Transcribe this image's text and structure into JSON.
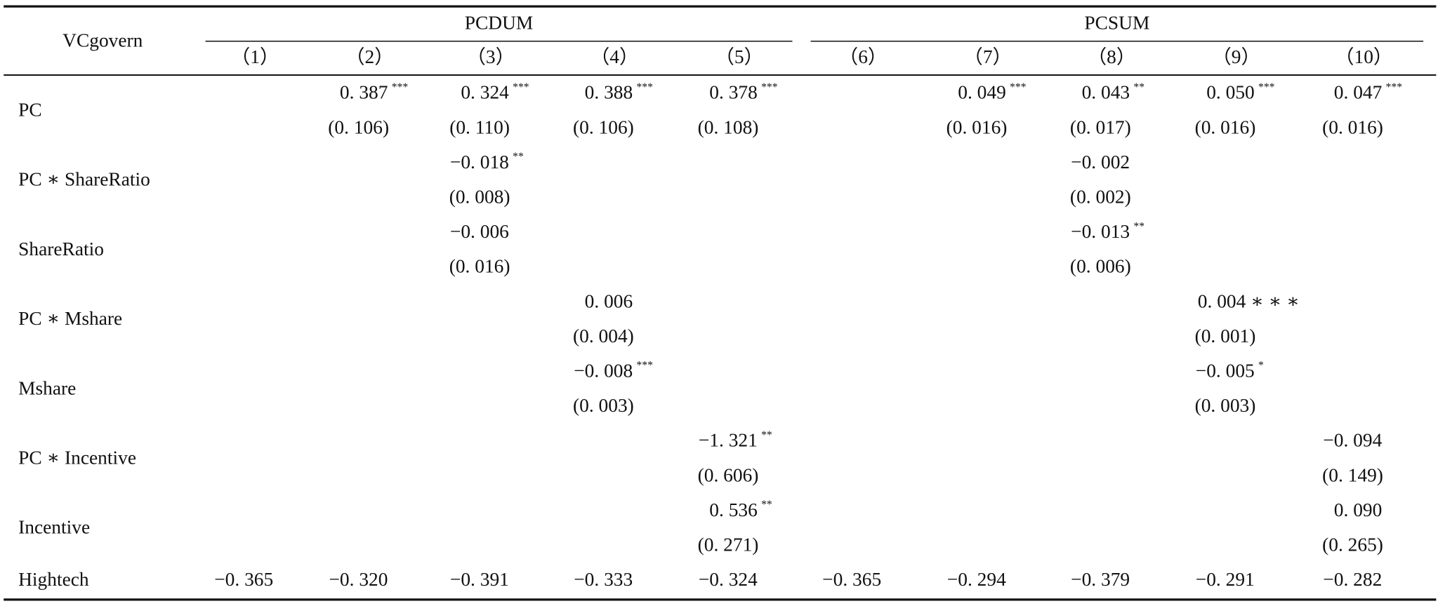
{
  "header": {
    "corner": "VCgovern",
    "groups": [
      "PCDUM",
      "PCSUM"
    ],
    "columns": [
      "（1）",
      "（2）",
      "（3）",
      "（4）",
      "（5）",
      "（6）",
      "（7）",
      "（8）",
      "（9）",
      "（10）"
    ]
  },
  "table": {
    "rows": [
      {
        "label": "PC",
        "coef": [
          null,
          "0. 387",
          "0. 324",
          "0. 388",
          "0. 378",
          null,
          "0. 049",
          "0. 043",
          "0. 050",
          "0. 047"
        ],
        "stars": [
          null,
          "***",
          "***",
          "***",
          "***",
          null,
          "***",
          "**",
          "***",
          "***"
        ],
        "se": [
          null,
          "(0. 106)",
          "(0. 110)",
          "(0. 106)",
          "(0. 108)",
          null,
          "(0. 016)",
          "(0. 017)",
          "(0. 016)",
          "(0. 016)"
        ]
      },
      {
        "label": "PC ∗ ShareRatio",
        "coef": [
          null,
          null,
          "−0. 018",
          null,
          null,
          null,
          null,
          "−0. 002",
          null,
          null
        ],
        "stars": [
          null,
          null,
          "**",
          null,
          null,
          null,
          null,
          null,
          null,
          null
        ],
        "se": [
          null,
          null,
          "(0. 008)",
          null,
          null,
          null,
          null,
          "(0. 002)",
          null,
          null
        ]
      },
      {
        "label": "ShareRatio",
        "coef": [
          null,
          null,
          "−0. 006",
          null,
          null,
          null,
          null,
          "−0. 013",
          null,
          null
        ],
        "stars": [
          null,
          null,
          null,
          null,
          null,
          null,
          null,
          "**",
          null,
          null
        ],
        "se": [
          null,
          null,
          "(0. 016)",
          null,
          null,
          null,
          null,
          "(0. 006)",
          null,
          null
        ]
      },
      {
        "label": "PC ∗ Mshare",
        "coef": [
          null,
          null,
          null,
          "0. 006",
          null,
          null,
          null,
          null,
          "0. 004 ∗ ∗ ∗",
          null
        ],
        "stars": [
          null,
          null,
          null,
          null,
          null,
          null,
          null,
          null,
          null,
          null
        ],
        "se": [
          null,
          null,
          null,
          "(0. 004)",
          null,
          null,
          null,
          null,
          "(0. 001)",
          null
        ]
      },
      {
        "label": "Mshare",
        "coef": [
          null,
          null,
          null,
          "−0. 008",
          null,
          null,
          null,
          null,
          "−0. 005",
          null
        ],
        "stars": [
          null,
          null,
          null,
          "***",
          null,
          null,
          null,
          null,
          "*",
          null
        ],
        "se": [
          null,
          null,
          null,
          "(0. 003)",
          null,
          null,
          null,
          null,
          "(0. 003)",
          null
        ]
      },
      {
        "label": "PC ∗ Incentive",
        "coef": [
          null,
          null,
          null,
          null,
          "−1. 321",
          null,
          null,
          null,
          null,
          "−0. 094"
        ],
        "stars": [
          null,
          null,
          null,
          null,
          "**",
          null,
          null,
          null,
          null,
          null
        ],
        "se": [
          null,
          null,
          null,
          null,
          "(0. 606)",
          null,
          null,
          null,
          null,
          "(0. 149)"
        ]
      },
      {
        "label": "Incentive",
        "coef": [
          null,
          null,
          null,
          null,
          "0. 536",
          null,
          null,
          null,
          null,
          "0. 090"
        ],
        "stars": [
          null,
          null,
          null,
          null,
          "**",
          null,
          null,
          null,
          null,
          null
        ],
        "se": [
          null,
          null,
          null,
          null,
          "(0. 271)",
          null,
          null,
          null,
          null,
          "(0. 265)"
        ]
      },
      {
        "label": "Hightech",
        "coef": [
          "−0. 365",
          "−0. 320",
          "−0. 391",
          "−0. 333",
          "−0. 324",
          "−0. 365",
          "−0. 294",
          "−0. 379",
          "−0. 291",
          "−0. 282"
        ],
        "stars": [
          null,
          null,
          null,
          null,
          null,
          null,
          null,
          null,
          null,
          null
        ],
        "se": [
          null,
          null,
          null,
          null,
          null,
          null,
          null,
          null,
          null,
          null
        ]
      }
    ]
  }
}
